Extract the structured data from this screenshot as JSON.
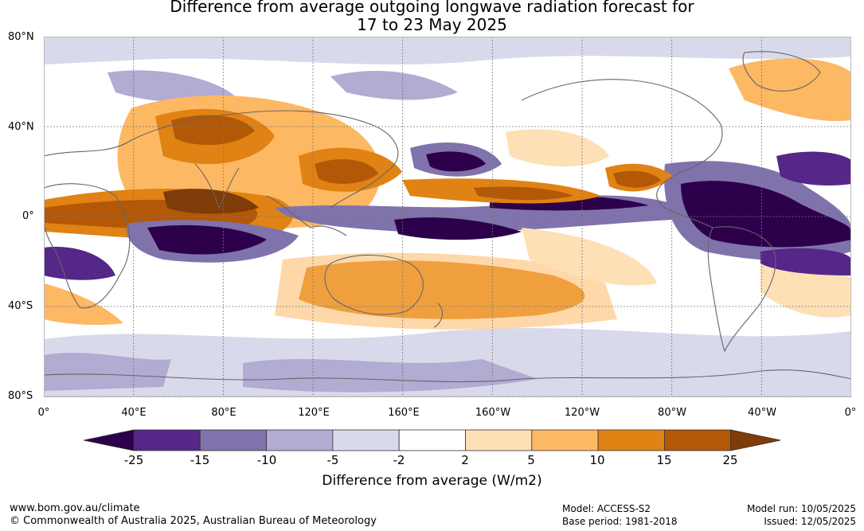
{
  "title": {
    "line1": "Difference from average outgoing longwave radiation forecast for",
    "line2": "17 to 23 May 2025"
  },
  "map_axes": {
    "lat_labels": [
      "80°N",
      "40°N",
      "0°",
      "40°S",
      "80°S"
    ],
    "lon_labels": [
      "0°",
      "40°E",
      "80°E",
      "120°E",
      "160°E",
      "160°W",
      "120°W",
      "80°W",
      "40°W",
      "0°"
    ]
  },
  "legend": {
    "title": "Difference from average (W/m2)",
    "ticks": [
      "-25",
      "-15",
      "-10",
      "-5",
      "-2",
      "2",
      "5",
      "10",
      "15",
      "25"
    ],
    "colors": [
      "#2d004b",
      "#542788",
      "#8073ac",
      "#b2abd2",
      "#d8daeb",
      "#ffffff",
      "#fee0b6",
      "#fdb863",
      "#e08214",
      "#b35806",
      "#7f3b08"
    ]
  },
  "footer": {
    "website": "www.bom.gov.au/climate",
    "copyright": "© Commonwealth of Australia 2025, Australian Bureau of Meteorology",
    "model": "Model: ACCESS-S2",
    "base_period": "Base period: 1981-2018",
    "model_run": "Model run: 10/05/2025",
    "issued": "Issued: 12/05/2025"
  }
}
